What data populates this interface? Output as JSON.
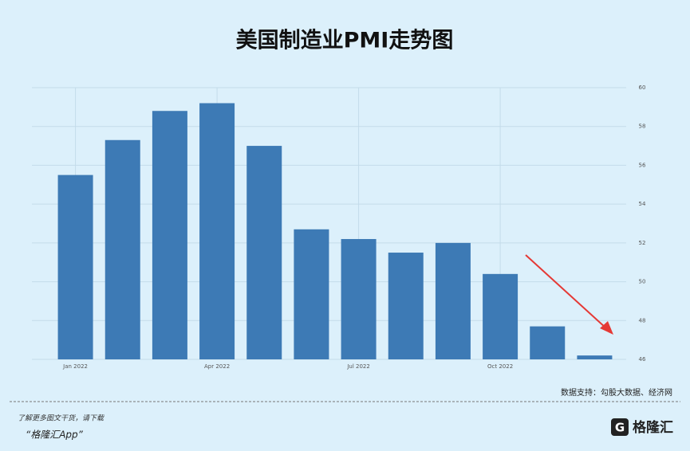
{
  "chart_data": {
    "type": "bar",
    "title": "美国制造业PMI走势图",
    "categories": [
      "Jan 2022",
      null,
      null,
      "Apr 2022",
      null,
      null,
      "Jul 2022",
      null,
      null,
      "Oct 2022",
      null,
      null
    ],
    "values": [
      55.5,
      57.3,
      58.8,
      59.2,
      57.0,
      52.7,
      52.2,
      51.5,
      52.0,
      50.4,
      47.7,
      46.2
    ],
    "color": "#3d7ab5",
    "ylim": [
      46,
      60
    ],
    "yticks": [
      46,
      48,
      50,
      52,
      54,
      56,
      58,
      60
    ],
    "grid": true,
    "source": "数据支持：勾股大数据、经济网"
  },
  "footer": {
    "note": "了解更多图文干货，请下载",
    "app": "“格隆汇App”",
    "logo": "格隆汇"
  }
}
